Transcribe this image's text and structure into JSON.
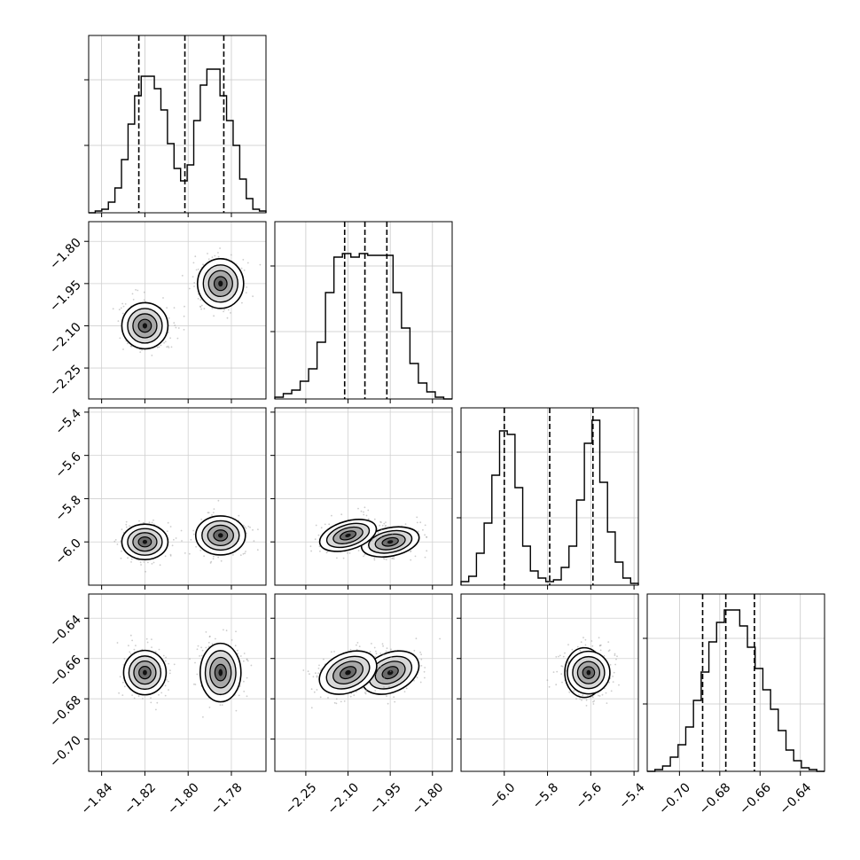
{
  "chart_data": {
    "type": "corner",
    "grid": true,
    "parameters": [
      {
        "range": [
          -1.846,
          -1.764
        ],
        "ticks": [
          -1.84,
          -1.82,
          -1.8,
          -1.78
        ],
        "tick_labels": [
          "−1.84",
          "−1.82",
          "−1.80",
          "−1.78"
        ],
        "quantiles": [
          -1.8228,
          -1.8015,
          -1.7835
        ],
        "histogram": [
          0,
          1,
          2,
          6,
          14,
          30,
          50,
          66,
          77,
          77,
          70,
          58,
          39,
          25,
          18,
          27,
          52,
          72,
          81,
          81,
          66,
          52,
          38,
          19,
          8,
          2,
          1
        ],
        "modes": [
          [
            -1.82,
            -1.78
          ],
          [
            -1.785,
            -1.77
          ]
        ]
      },
      {
        "range": [
          -2.36,
          -1.73
        ],
        "ticks": [
          -2.25,
          -2.1,
          -1.95,
          -1.8
        ],
        "tick_labels": [
          "−2.25",
          "−2.10",
          "−1.95",
          "−1.80"
        ],
        "quantiles": [
          -2.112,
          -2.04,
          -1.962
        ],
        "histogram": [
          1,
          3,
          5,
          10,
          17,
          32,
          60,
          80,
          82,
          80,
          82,
          81,
          81,
          81,
          60,
          40,
          20,
          9,
          4,
          1,
          0
        ],
        "modes": [
          [
            -1.95,
            -2.1
          ],
          [
            -2.1,
            -1.95
          ]
        ]
      },
      {
        "range": [
          -6.2,
          -5.38
        ],
        "ticks": [
          -6.0,
          -5.8,
          -5.6,
          -5.4
        ],
        "tick_labels": [
          "−6.0",
          "−5.8",
          "−5.6",
          "−5.4"
        ],
        "quantiles": [
          -6.0,
          -5.79,
          -5.59
        ],
        "histogram": [
          2,
          5,
          18,
          35,
          62,
          87,
          85,
          55,
          22,
          8,
          4,
          2,
          3,
          10,
          22,
          48,
          80,
          93,
          58,
          30,
          13,
          4,
          1
        ],
        "modes": [
          [
            -5.63,
            -6.0
          ],
          [
            -5.61,
            -5.97
          ]
        ]
      },
      {
        "range": [
          -0.716,
          -0.628
        ],
        "ticks": [
          -0.7,
          -0.68,
          -0.66,
          -0.64
        ],
        "tick_labels": [
          "−0.70",
          "−0.68",
          "−0.66",
          "−0.64"
        ],
        "quantiles": [
          -0.6885,
          -0.677,
          -0.6628
        ],
        "histogram": [
          0,
          1,
          3,
          8,
          15,
          25,
          40,
          56,
          73,
          84,
          91,
          91,
          82,
          70,
          58,
          46,
          35,
          23,
          12,
          6,
          2,
          1,
          0
        ],
        "modes": [
          [
            -0.683,
            -0.667
          ],
          [
            -0.683,
            -0.667
          ]
        ]
      }
    ]
  }
}
